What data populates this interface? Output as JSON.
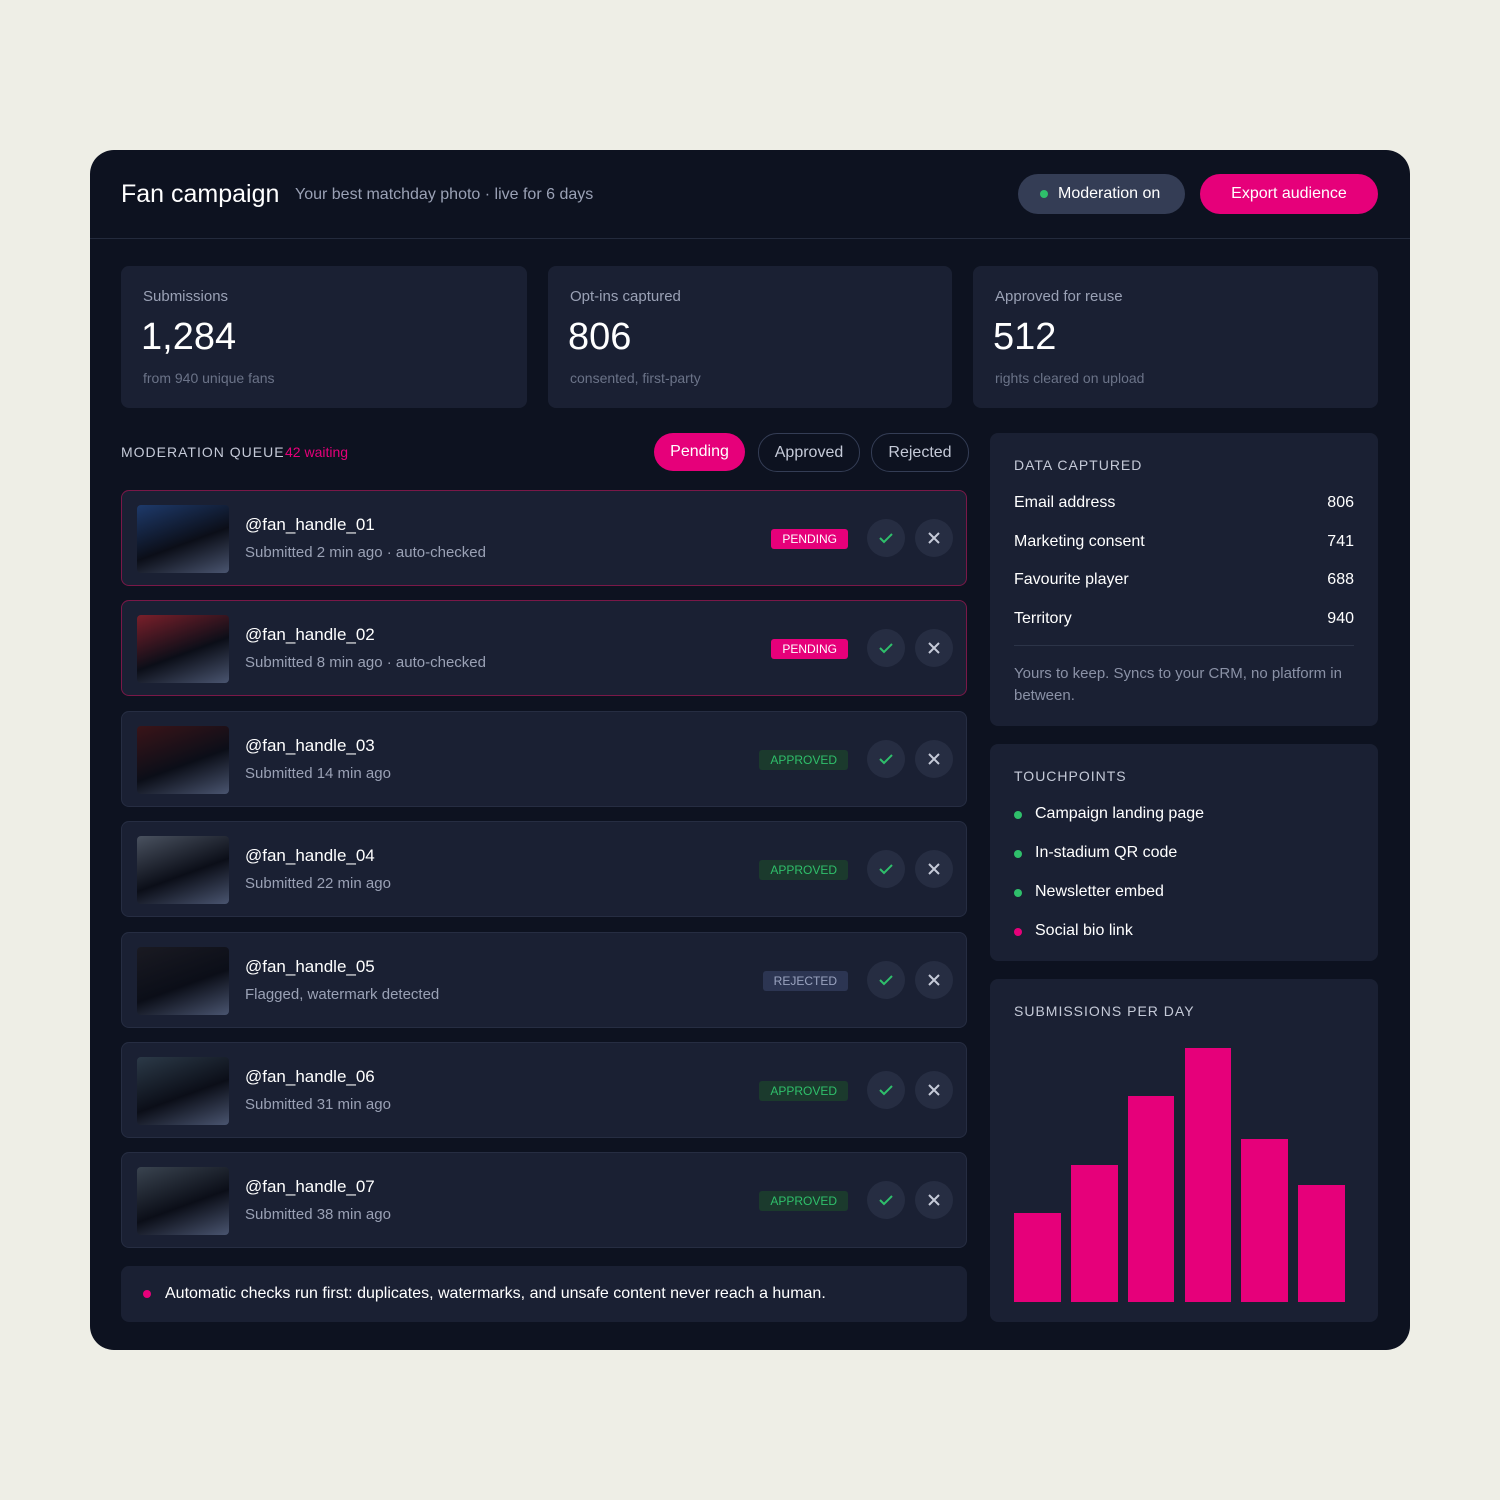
{
  "header": {
    "title": "Fan campaign",
    "subtitle": "Your best matchday photo · live for 6 days",
    "status": "Moderation on",
    "button": "Export audience"
  },
  "stats": [
    {
      "label": "Submissions",
      "value": "1,284",
      "note": "from 940 unique fans"
    },
    {
      "label": "Opt-ins captured",
      "value": "806",
      "note": "consented, first-party"
    },
    {
      "label": "Approved for reuse",
      "value": "512",
      "note": "rights cleared on upload"
    }
  ],
  "queue": {
    "title": "MODERATION QUEUE",
    "count": "42 waiting",
    "tabs": [
      "Pending",
      "Approved",
      "Rejected"
    ],
    "items": [
      {
        "handle": "@fan_handle_01",
        "meta": "Submitted 2 min ago · auto-checked",
        "status": "PENDING"
      },
      {
        "handle": "@fan_handle_02",
        "meta": "Submitted 8 min ago · auto-checked",
        "status": "PENDING"
      },
      {
        "handle": "@fan_handle_03",
        "meta": "Submitted 14 min ago",
        "status": "APPROVED"
      },
      {
        "handle": "@fan_handle_04",
        "meta": "Submitted 22 min ago",
        "status": "APPROVED"
      },
      {
        "handle": "@fan_handle_05",
        "meta": "Flagged, watermark detected",
        "status": "REJECTED"
      },
      {
        "handle": "@fan_handle_06",
        "meta": "Submitted 31 min ago",
        "status": "APPROVED"
      },
      {
        "handle": "@fan_handle_07",
        "meta": "Submitted 38 min ago",
        "status": "APPROVED"
      }
    ],
    "note": "Automatic checks run first: duplicates, watermarks, and unsafe content never reach a human."
  },
  "data_captured": {
    "title": "DATA CAPTURED",
    "rows": [
      {
        "label": "Email address",
        "value": "806"
      },
      {
        "label": "Marketing consent",
        "value": "741"
      },
      {
        "label": "Favourite player",
        "value": "688"
      },
      {
        "label": "Territory",
        "value": "940"
      }
    ],
    "note": "Yours to keep. Syncs to your CRM, no platform in between."
  },
  "touchpoints": {
    "title": "TOUCHPOINTS",
    "items": [
      {
        "label": "Campaign landing page",
        "color": "#2fbf6b"
      },
      {
        "label": "In-stadium QR code",
        "color": "#2fbf6b"
      },
      {
        "label": "Newsletter embed",
        "color": "#2fbf6b"
      },
      {
        "label": "Social bio link",
        "color": "#e6007a"
      }
    ]
  },
  "chart_data": {
    "type": "bar",
    "title": "SUBMISSIONS PER DAY",
    "values": [
      35,
      54,
      81,
      100,
      64,
      46
    ],
    "ylim": [
      0,
      100
    ],
    "color": "#e6007a"
  }
}
